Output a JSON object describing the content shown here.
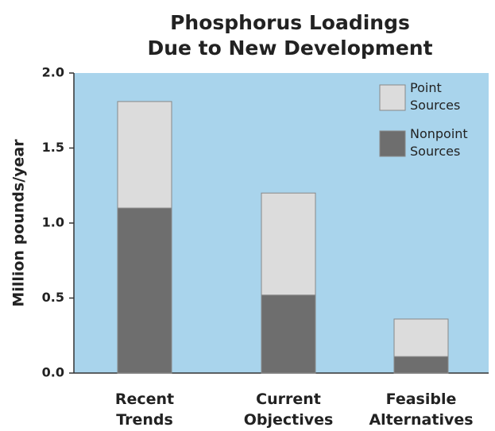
{
  "chart_data": {
    "type": "stacked_bar",
    "title": [
      "Phosphorus Loadings",
      "Due to New Development"
    ],
    "y_label": "Million pounds/year",
    "categories": [
      "Recent Trends",
      "Current Objectives",
      "Feasible Alternatives"
    ],
    "series": [
      {
        "name": "Nonpoint Sources",
        "color": "#6e6e6e",
        "values": [
          1.1,
          0.52,
          0.11
        ]
      },
      {
        "name": "Point Sources",
        "color": "#dcdcdc",
        "values": [
          0.71,
          0.68,
          0.25
        ]
      }
    ],
    "ylim": [
      0,
      2
    ],
    "yticks": [
      {
        "value": 0,
        "label": "0.0"
      },
      {
        "value": 0.5,
        "label": "0.5"
      },
      {
        "value": 1,
        "label": "1.0"
      },
      {
        "value": 1.5,
        "label": "1.5"
      },
      {
        "value": 2,
        "label": "2.0"
      }
    ],
    "plot_background": "#a9d4ec",
    "legend": "upper right"
  }
}
